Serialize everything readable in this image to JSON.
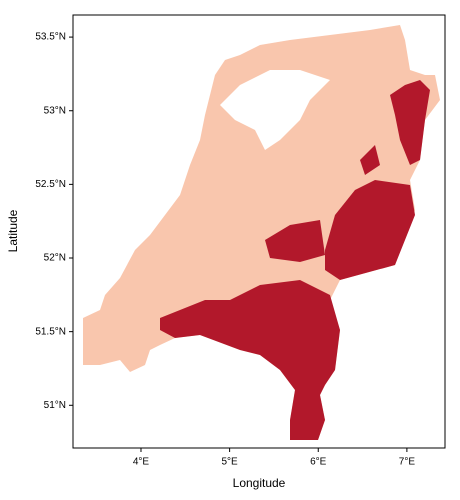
{
  "map": {
    "xlabel": "Longitude",
    "ylabel": "Latitude",
    "xlim": [
      3.233,
      7.43
    ],
    "ylim": [
      50.71,
      53.65
    ],
    "xticks": [
      {
        "value": 4,
        "label": "4°E"
      },
      {
        "value": 5,
        "label": "5°E"
      },
      {
        "value": 6,
        "label": "6°E"
      },
      {
        "value": 7,
        "label": "7°E"
      }
    ],
    "yticks": [
      {
        "value": 51,
        "label": "51°N"
      },
      {
        "value": 51.5,
        "label": "51.5°N"
      },
      {
        "value": 52,
        "label": "52°N"
      },
      {
        "value": 52.5,
        "label": "52.5°N"
      },
      {
        "value": 53,
        "label": "53°N"
      },
      {
        "value": 53.5,
        "label": "53.5°N"
      }
    ]
  }
}
